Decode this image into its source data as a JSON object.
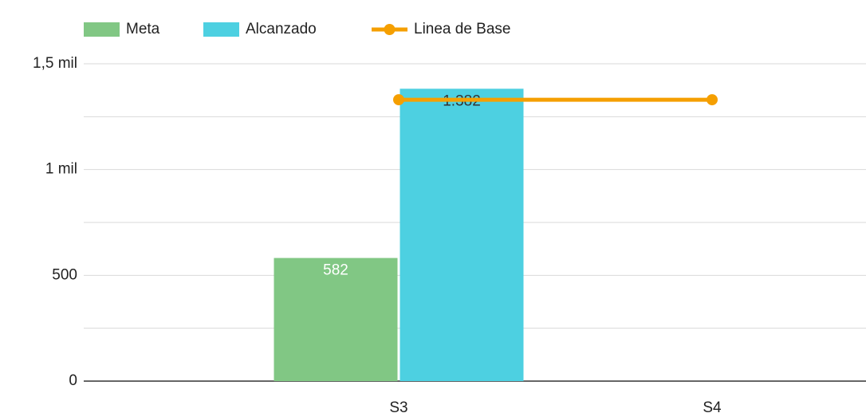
{
  "chart_data": {
    "type": "bar-line",
    "categories": [
      "S3",
      "S4"
    ],
    "series": [
      {
        "name": "Meta",
        "type": "bar",
        "color": "#81c784",
        "values": [
          582,
          null
        ],
        "label_color": "#ffffff"
      },
      {
        "name": "Alcanzado",
        "type": "bar",
        "color": "#4dd0e1",
        "values": [
          1382,
          null
        ],
        "value_labels": [
          "1.382",
          null
        ],
        "label_color": "#333333"
      },
      {
        "name": "Linea de Base",
        "type": "line",
        "color": "#f59f00",
        "values": [
          1330,
          1330
        ]
      }
    ],
    "ylim": [
      0,
      1500
    ],
    "yticks": [
      0,
      500,
      {
        "value": 1000,
        "label": "1 mil"
      },
      {
        "value": 1500,
        "label": "1,5 mil"
      }
    ],
    "minor_yticks": [
      250,
      750,
      1250
    ],
    "grid": true,
    "legend": "top"
  }
}
